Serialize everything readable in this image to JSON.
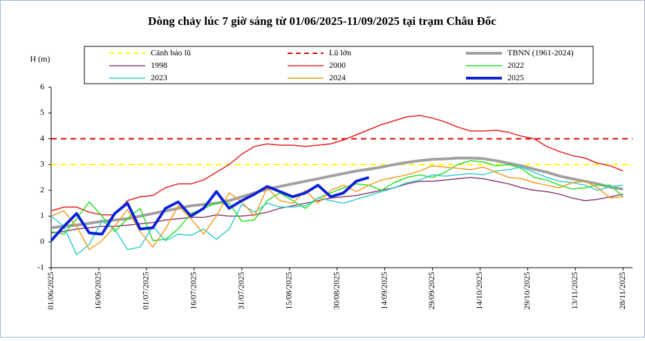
{
  "chart_data": {
    "type": "line",
    "title": "Dòng chảy lúc 7 giờ sáng từ 01/06/2025-11/09/2025 tại trạm Châu Đốc",
    "y_label": "H (m)",
    "ylim": [
      -1,
      6
    ],
    "yticks": [
      -1,
      0,
      1,
      2,
      3,
      4,
      5,
      6
    ],
    "xlim": [
      "01/06/2025",
      "01/12/2025"
    ],
    "xticks": [
      "01/06/2025",
      "16/06/2025",
      "01/07/2025",
      "16/07/2025",
      "31/07/2025",
      "15/08/2025",
      "30/08/2025",
      "14/09/2025",
      "29/09/2025",
      "14/10/2025",
      "29/10/2025",
      "13/11/2025",
      "28/11/2025"
    ],
    "x": [
      "01/06/2025",
      "05/06/2025",
      "09/06/2025",
      "13/06/2025",
      "17/06/2025",
      "21/06/2025",
      "25/06/2025",
      "29/06/2025",
      "03/07/2025",
      "07/07/2025",
      "11/07/2025",
      "15/07/2025",
      "19/07/2025",
      "23/07/2025",
      "27/07/2025",
      "31/07/2025",
      "04/08/2025",
      "08/08/2025",
      "12/08/2025",
      "16/08/2025",
      "20/08/2025",
      "24/08/2025",
      "28/08/2025",
      "01/09/2025",
      "05/09/2025",
      "09/09/2025",
      "13/09/2025",
      "17/09/2025",
      "21/09/2025",
      "25/09/2025",
      "29/09/2025",
      "03/10/2025",
      "07/10/2025",
      "11/10/2025",
      "15/10/2025",
      "19/10/2025",
      "23/10/2025",
      "27/10/2025",
      "31/10/2025",
      "04/11/2025",
      "08/11/2025",
      "12/11/2025",
      "16/11/2025",
      "20/11/2025",
      "24/11/2025",
      "28/11/2025"
    ],
    "series": [
      {
        "name": "Cảnh báo lũ",
        "color": "#ffff00",
        "level": 3,
        "dashed": true,
        "width": 2
      },
      {
        "name": "Lũ lớn",
        "color": "#e00000",
        "level": 4,
        "dashed": true,
        "width": 2
      },
      {
        "name": "TBNN (1961-2024)",
        "color": "#a0a0a0",
        "width": 4,
        "values": [
          0.55,
          0.6,
          0.65,
          0.72,
          0.8,
          0.85,
          0.9,
          1.0,
          1.1,
          1.2,
          1.3,
          1.4,
          1.45,
          1.5,
          1.6,
          1.75,
          1.9,
          2.05,
          2.15,
          2.25,
          2.35,
          2.45,
          2.55,
          2.65,
          2.75,
          2.82,
          2.9,
          3.0,
          3.08,
          3.15,
          3.2,
          3.22,
          3.25,
          3.25,
          3.23,
          3.15,
          3.05,
          2.95,
          2.82,
          2.7,
          2.55,
          2.45,
          2.35,
          2.25,
          2.12,
          2.05
        ]
      },
      {
        "name": "1998",
        "color": "#8b3a6e",
        "width": 1.5,
        "values": [
          0.35,
          0.4,
          0.5,
          0.55,
          0.6,
          0.6,
          0.65,
          0.7,
          0.75,
          0.85,
          0.9,
          0.95,
          0.95,
          1.05,
          1.0,
          1.0,
          1.05,
          1.15,
          1.3,
          1.4,
          1.5,
          1.6,
          1.7,
          1.75,
          1.8,
          1.9,
          2.0,
          2.1,
          2.25,
          2.35,
          2.35,
          2.4,
          2.45,
          2.5,
          2.45,
          2.35,
          2.25,
          2.1,
          2.0,
          1.95,
          1.85,
          1.7,
          1.6,
          1.65,
          1.75,
          1.85
        ]
      },
      {
        "name": "2000",
        "color": "#e81c1c",
        "width": 1.5,
        "values": [
          1.2,
          1.35,
          1.35,
          1.15,
          1.05,
          1.05,
          1.6,
          1.75,
          1.8,
          2.1,
          2.25,
          2.25,
          2.4,
          2.7,
          3.0,
          3.4,
          3.7,
          3.8,
          3.75,
          3.75,
          3.7,
          3.75,
          3.8,
          3.95,
          4.15,
          4.35,
          4.55,
          4.7,
          4.85,
          4.9,
          4.8,
          4.65,
          4.45,
          4.3,
          4.3,
          4.33,
          4.25,
          4.1,
          4.0,
          3.7,
          3.5,
          3.35,
          3.25,
          3.05,
          2.95,
          2.75
        ]
      },
      {
        "name": "2022",
        "color": "#22e022",
        "width": 1.5,
        "values": [
          0.4,
          0.3,
          0.9,
          1.55,
          1.0,
          0.4,
          0.9,
          1.3,
          0.05,
          0.1,
          0.5,
          1.1,
          1.3,
          1.5,
          1.5,
          0.8,
          0.85,
          1.6,
          1.9,
          1.6,
          1.3,
          1.7,
          1.9,
          2.1,
          2.25,
          2.2,
          2.0,
          2.3,
          2.5,
          2.6,
          2.5,
          2.7,
          3.0,
          3.15,
          3.1,
          2.95,
          3.0,
          2.85,
          2.5,
          2.4,
          2.2,
          2.05,
          2.1,
          2.2,
          2.2,
          1.75
        ]
      },
      {
        "name": "2023",
        "color": "#33cccc",
        "width": 1.5,
        "values": [
          1.0,
          0.6,
          -0.5,
          -0.1,
          0.8,
          0.5,
          -0.3,
          -0.2,
          0.6,
          0.05,
          0.3,
          0.25,
          0.5,
          0.1,
          0.5,
          1.45,
          1.15,
          1.5,
          1.35,
          1.35,
          1.4,
          1.7,
          1.6,
          1.5,
          1.65,
          1.8,
          1.95,
          2.1,
          2.3,
          2.4,
          2.6,
          2.55,
          2.6,
          2.65,
          2.6,
          2.75,
          2.8,
          2.9,
          2.7,
          2.5,
          2.35,
          2.3,
          2.2,
          2.0,
          2.15,
          2.2
        ]
      },
      {
        "name": "2024",
        "color": "#f59a1c",
        "width": 1.5,
        "values": [
          1.0,
          1.2,
          0.6,
          -0.3,
          0.05,
          0.6,
          1.25,
          0.4,
          -0.2,
          0.5,
          1.4,
          0.9,
          0.3,
          1.0,
          1.9,
          1.55,
          1.0,
          2.1,
          1.6,
          1.5,
          2.0,
          1.5,
          2.0,
          2.2,
          1.95,
          2.2,
          2.4,
          2.5,
          2.6,
          2.75,
          2.95,
          2.9,
          2.85,
          2.8,
          2.9,
          2.7,
          2.5,
          2.45,
          2.3,
          2.2,
          2.1,
          2.3,
          2.35,
          2.1,
          1.7,
          1.75
        ]
      },
      {
        "name": "2025",
        "color": "#0a23d6",
        "width": 4,
        "values": [
          0.05,
          0.6,
          1.1,
          0.35,
          0.3,
          1.1,
          1.5,
          0.5,
          0.55,
          1.3,
          1.55,
          1.0,
          1.3,
          1.95,
          1.3,
          1.6,
          1.85,
          2.15,
          1.95,
          1.75,
          1.9,
          2.2,
          1.75,
          1.9,
          2.35,
          2.5,
          null,
          null,
          null,
          null,
          null,
          null,
          null,
          null,
          null,
          null,
          null,
          null,
          null,
          null,
          null,
          null,
          null,
          null,
          null,
          null
        ]
      }
    ]
  }
}
